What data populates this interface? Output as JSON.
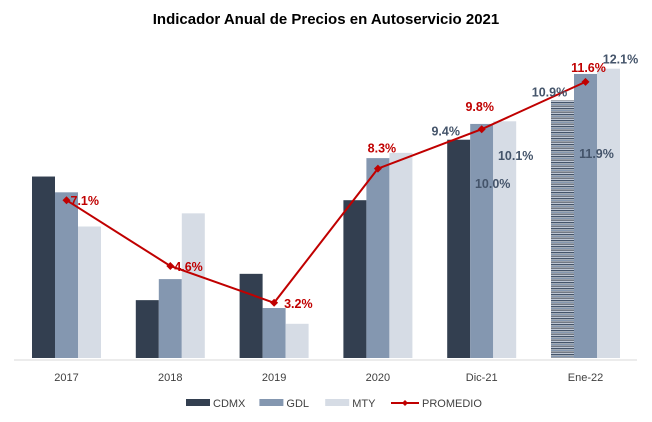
{
  "chart_data": {
    "type": "bar",
    "title": "Indicador Anual de Precios en Autoservicio 2021",
    "xlabel": "",
    "ylabel": "",
    "ylim": [
      1.1,
      13.0
    ],
    "grid": false,
    "legend_position": "bottom",
    "categories": [
      "2017",
      "2018",
      "2019",
      "2020",
      "Dic-21",
      "Ene-22"
    ],
    "series": [
      {
        "name": "CDMX",
        "kind": "bar",
        "color": "#333f50",
        "values": [
          8.0,
          3.3,
          4.3,
          7.1,
          9.4,
          10.9
        ],
        "labels": [
          null,
          null,
          null,
          null,
          "9.4%",
          "10.9%"
        ],
        "patterned": [
          false,
          false,
          false,
          false,
          false,
          true
        ]
      },
      {
        "name": "GDL",
        "kind": "bar",
        "color": "#8497b0",
        "values": [
          7.4,
          4.1,
          3.0,
          8.7,
          10.0,
          11.9
        ],
        "labels": [
          null,
          null,
          null,
          null,
          "10.0%",
          "11.9%"
        ]
      },
      {
        "name": "MTY",
        "kind": "bar",
        "color": "#d6dce5",
        "values": [
          6.1,
          6.6,
          2.4,
          8.9,
          10.1,
          12.1
        ],
        "labels": [
          null,
          null,
          null,
          null,
          "10.1%",
          "12.1%"
        ]
      },
      {
        "name": "PROMEDIO",
        "kind": "line",
        "color": "#c00000",
        "values": [
          7.1,
          4.6,
          3.2,
          8.3,
          9.8,
          11.6
        ],
        "labels": [
          "7.1%",
          "4.6%",
          "3.2%",
          "8.3%",
          "9.8%",
          "11.6%"
        ]
      }
    ]
  }
}
